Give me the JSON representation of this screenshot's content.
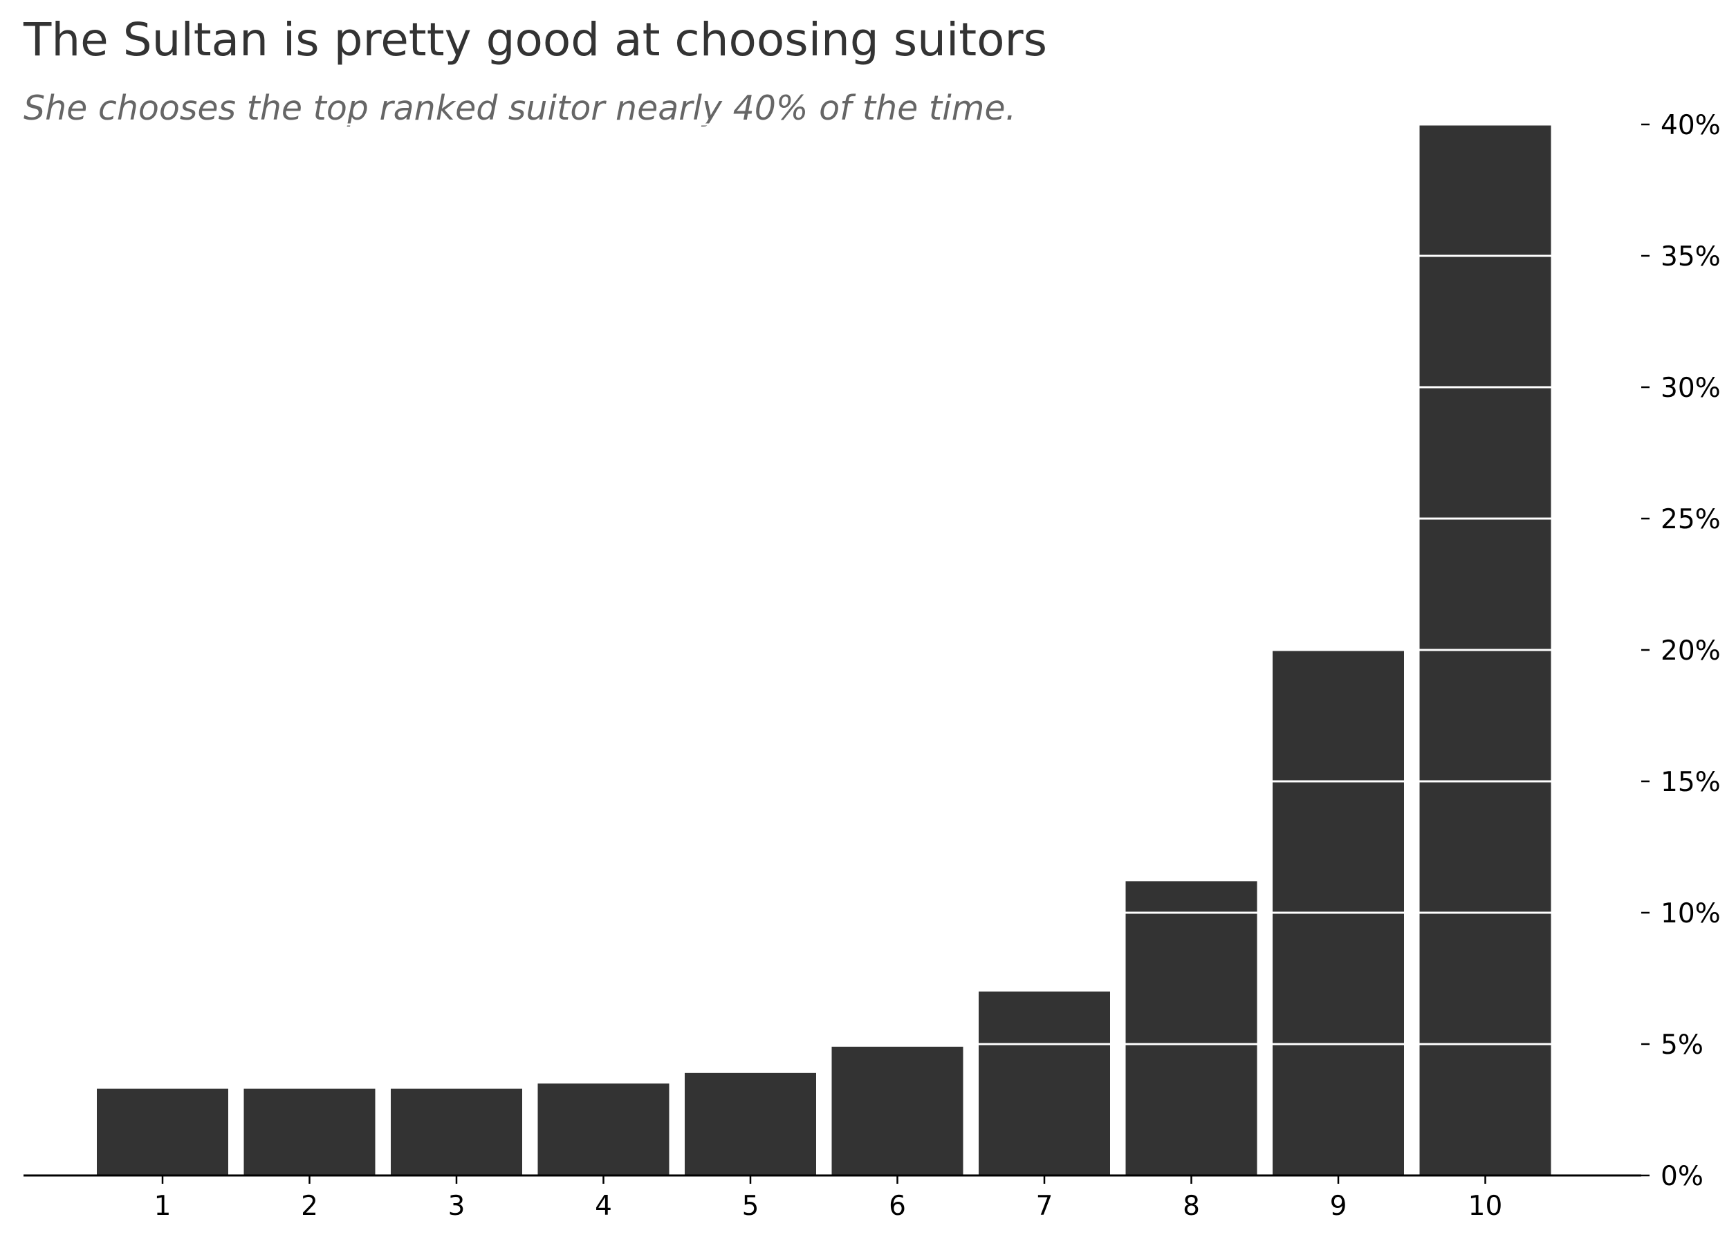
{
  "chart_data": {
    "type": "bar",
    "title": "The Sultan is pretty good at choosing suitors",
    "subtitle": "She chooses the top ranked suitor nearly 40% of the time.",
    "xlabel": "",
    "ylabel": "",
    "categories": [
      "1",
      "2",
      "3",
      "4",
      "5",
      "6",
      "7",
      "8",
      "9",
      "10"
    ],
    "values": [
      3.3,
      3.3,
      3.3,
      3.5,
      3.9,
      4.9,
      7.0,
      11.2,
      20.0,
      40.0
    ],
    "ylim": [
      0,
      40
    ],
    "yticks": [
      0,
      5,
      10,
      15,
      20,
      25,
      30,
      35,
      40
    ],
    "ytick_labels": [
      "0%",
      "5%",
      "10%",
      "15%",
      "20%",
      "25%",
      "30%",
      "35%",
      "40%"
    ],
    "yaxis_position": "right",
    "grid": "horizontal gridlines drawn in white over bars",
    "bar_color": "#333333",
    "grid_color": "#ffffff",
    "axis_color": "#000000"
  }
}
